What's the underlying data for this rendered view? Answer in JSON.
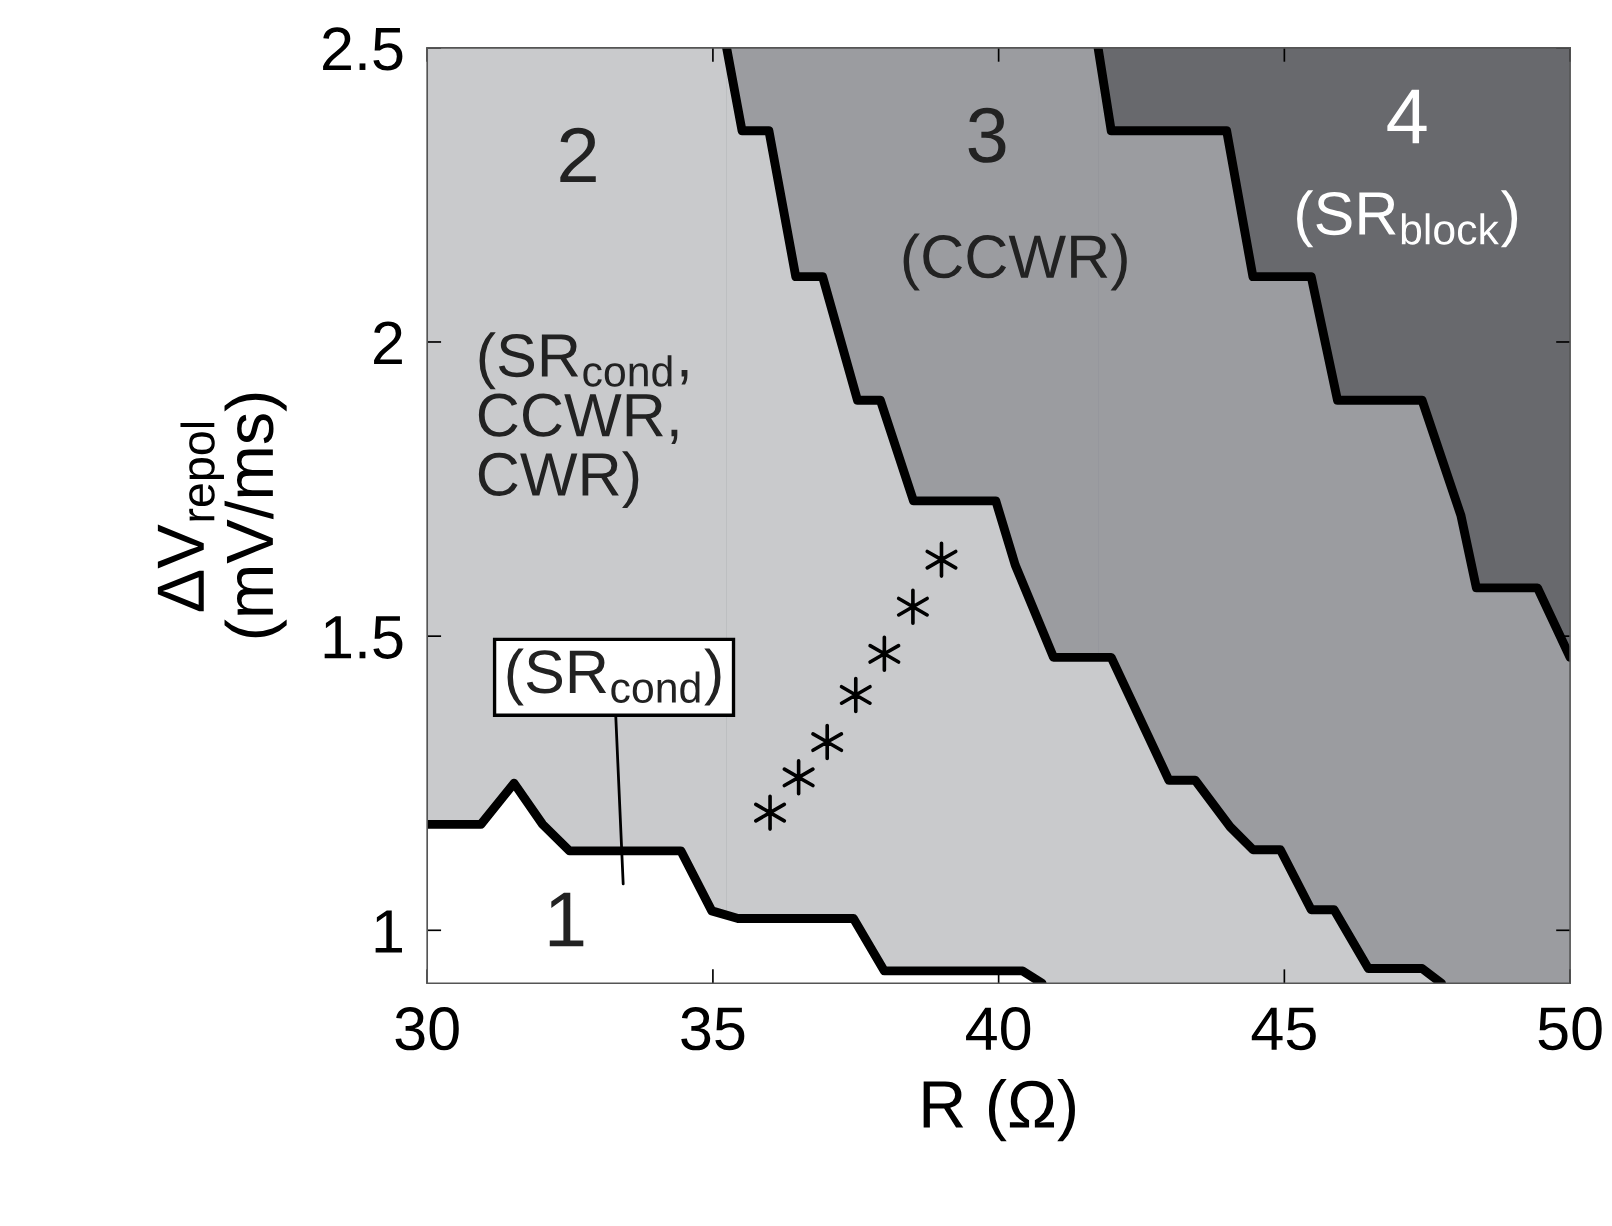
{
  "chart_data": {
    "type": "area",
    "xlabel": "R (Ω)",
    "ylabel": "ΔV$_{repol}$\n(mV/ms)",
    "xlim": [
      30,
      50
    ],
    "ylim": [
      0.91,
      2.5
    ],
    "xticks": [
      30,
      35,
      40,
      45,
      50
    ],
    "yticks": [
      1,
      1.5,
      2,
      2.5
    ],
    "grid": false,
    "bands": [
      {
        "axis": "y",
        "from": 1.464,
        "to": 2.5,
        "color": "#68696d"
      }
    ],
    "series": [
      {
        "color": "#9b9ca0",
        "x": [
          41.74,
          41.97,
          43.99,
          44.45,
          45.47,
          45.93,
          47.41,
          48.09,
          48.36,
          49.43,
          50
        ],
        "values": [
          2.5,
          2.359,
          2.359,
          2.111,
          2.111,
          1.901,
          1.901,
          1.705,
          1.582,
          1.582,
          1.464
        ]
      },
      {
        "color": "#c9cacc",
        "x": [
          35.24,
          35.51,
          35.98,
          36.45,
          36.92,
          37.53,
          37.93,
          38.51,
          39.95,
          40.29,
          40.96,
          41.97,
          42.98,
          43.44,
          44.05,
          44.45,
          44.93,
          45.47,
          45.87,
          46.47,
          47.41,
          47.75
        ],
        "values": [
          2.5,
          2.359,
          2.359,
          2.111,
          2.111,
          1.901,
          1.901,
          1.73,
          1.73,
          1.621,
          1.464,
          1.464,
          1.255,
          1.255,
          1.176,
          1.137,
          1.137,
          1.035,
          1.035,
          0.935,
          0.935,
          0.91
        ]
      },
      {
        "color": "#ffffff",
        "x": [
          30,
          30.94,
          31.52,
          32.02,
          32.49,
          34.44,
          34.98,
          35.44,
          37.46,
          38.0,
          40.42,
          40.76
        ],
        "values": [
          1.18,
          1.18,
          1.25,
          1.18,
          1.135,
          1.135,
          1.033,
          1.02,
          1.02,
          0.931,
          0.931,
          0.91
        ]
      },
      {
        "type": "scatter",
        "color": "#000000",
        "marker": "cross",
        "x": [
          36,
          36.5,
          37,
          37.5,
          38,
          38.5,
          39
        ],
        "values": [
          1.2,
          1.26,
          1.32,
          1.4,
          1.47,
          1.55,
          1.63
        ]
      }
    ],
    "annotations": [
      "1",
      "2",
      "(SR$_{cond}$,\nCCWR,\nCWR)",
      "3",
      "(CCWR)",
      "4",
      "(SR$_{block}$)",
      "(SR$_{cond}$)"
    ]
  }
}
